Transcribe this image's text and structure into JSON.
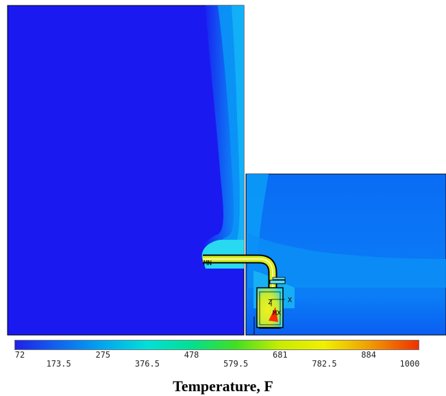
{
  "plot": {
    "markers": {
      "min": "MN",
      "max": "MX",
      "z_axis": "Z",
      "x_axis": "X"
    }
  },
  "colors": {
    "cold": "#1a1af0",
    "ambient_right": "#0a6cf5",
    "plume": "#0a9df7",
    "warm": "#29d9f0",
    "hot": "#e6ef10",
    "max": "#ff2a00"
  },
  "legend": {
    "title": "Temperature, F",
    "scale": [
      {
        "label": "72",
        "value": 72,
        "row": "upper",
        "color": "#2020e8"
      },
      {
        "label": "173.5",
        "value": 173.5,
        "row": "lower",
        "color": "#1066f0"
      },
      {
        "label": "275",
        "value": 275,
        "row": "upper",
        "color": "#00a8f0"
      },
      {
        "label": "376.5",
        "value": 376.5,
        "row": "lower",
        "color": "#00e0d8"
      },
      {
        "label": "478",
        "value": 478,
        "row": "upper",
        "color": "#00e090"
      },
      {
        "label": "579.5",
        "value": 579.5,
        "row": "lower",
        "color": "#40e020"
      },
      {
        "label": "681",
        "value": 681,
        "row": "upper",
        "color": "#c8ec00"
      },
      {
        "label": "782.5",
        "value": 782.5,
        "row": "lower",
        "color": "#f0f000"
      },
      {
        "label": "884",
        "value": 884,
        "row": "upper",
        "color": "#f0a000"
      },
      {
        "label": "1000",
        "value": 1000,
        "row": "lower",
        "color": "#f03000"
      }
    ]
  }
}
